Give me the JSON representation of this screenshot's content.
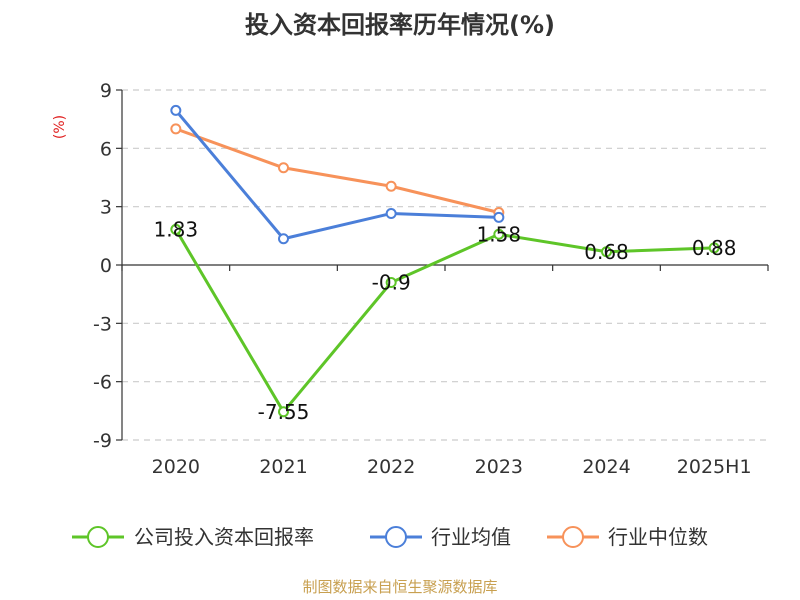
{
  "chart_data": {
    "type": "line",
    "title": "投入资本回报率历年情况(%)",
    "ylabel": "(%)",
    "categories": [
      "2020",
      "2021",
      "2022",
      "2023",
      "2024",
      "2025H1"
    ],
    "ylim": [
      -9,
      9
    ],
    "yticks": [
      9,
      6,
      3,
      0,
      -3,
      -6,
      -9
    ],
    "grid": true,
    "legend_position": "bottom",
    "series": [
      {
        "name": "公司投入资本回报率",
        "color": "#5ec528",
        "values": [
          1.83,
          -7.55,
          -0.9,
          1.58,
          0.68,
          0.88
        ],
        "labels": [
          "1.83",
          "-7.55",
          "-0.9",
          "1.58",
          "0.68",
          "0.88"
        ]
      },
      {
        "name": "行业均值",
        "color": "#4b7fd9",
        "values": [
          7.95,
          1.35,
          2.65,
          2.45,
          null,
          null
        ]
      },
      {
        "name": "行业中位数",
        "color": "#f7925a",
        "values": [
          7.0,
          5.0,
          4.05,
          2.7,
          null,
          null
        ]
      }
    ]
  },
  "source": "制图数据来自恒生聚源数据库"
}
